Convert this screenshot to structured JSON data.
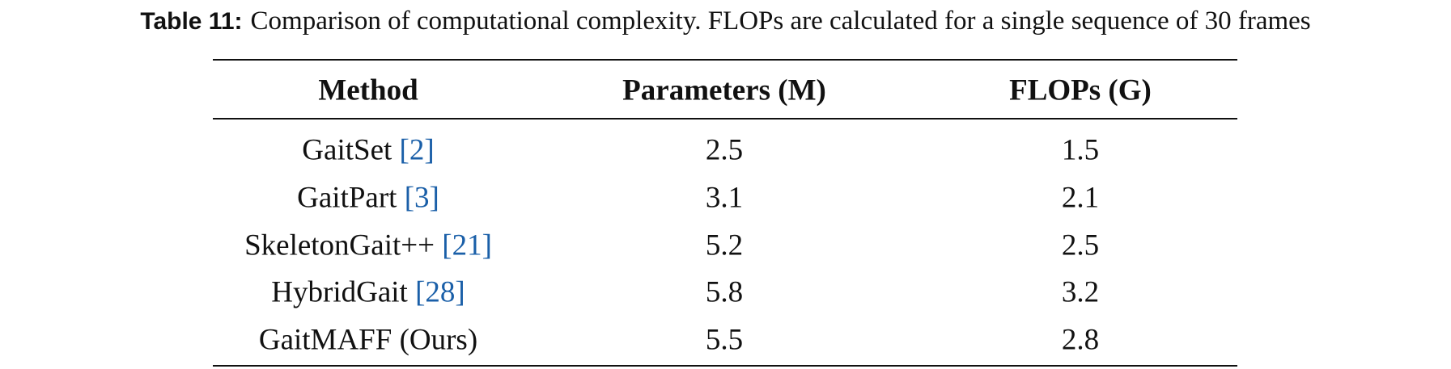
{
  "caption": {
    "label": "Table 11:",
    "text": "Comparison of computational complexity. FLOPs are calculated for a single sequence of 30 frames"
  },
  "table": {
    "header": [
      "Method",
      "Parameters (M)",
      "FLOPs (G)"
    ],
    "rows": [
      {
        "method": "GaitSet",
        "citation": "[2]",
        "params": 2.5,
        "flops": 1.5
      },
      {
        "method": "GaitPart",
        "citation": "[3]",
        "params": 3.1,
        "flops": 2.1
      },
      {
        "method": "SkeletonGait++",
        "citation": "[21]",
        "params": 5.2,
        "flops": 2.5
      },
      {
        "method": "HybridGait",
        "citation": "[28]",
        "params": 5.8,
        "flops": 3.2
      },
      {
        "method": "GaitMAFF (Ours)",
        "citation": null,
        "params": 5.5,
        "flops": 2.8
      }
    ]
  }
}
